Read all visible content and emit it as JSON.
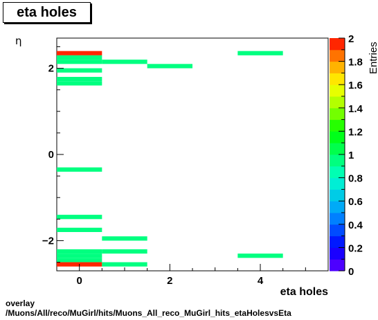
{
  "header": {
    "title": "eta holes"
  },
  "footer": {
    "line1": "overlay",
    "line2": "/Muons/All/reco/MuGirl/hits/Muons_All_reco_MuGirl_hits_etaHolesvsEta"
  },
  "chart_data": {
    "type": "heatmap",
    "title": "eta holes",
    "xlabel": "eta holes",
    "ylabel": "η",
    "zlabel": "Entries",
    "xlim": [
      -0.5,
      5.5
    ],
    "ylim": [
      -2.7,
      2.7
    ],
    "zlim": [
      0,
      2
    ],
    "x_bin_width": 1,
    "y_bin_width": 0.1,
    "xticks": [
      0,
      2,
      4
    ],
    "yticks": [
      -2,
      0,
      2
    ],
    "zticks": [
      "0",
      "0.2",
      "0.4",
      "0.6",
      "0.8",
      "1",
      "1.2",
      "1.4",
      "1.6",
      "1.8",
      "2"
    ],
    "cells": [
      {
        "x": 0,
        "y": 2.35,
        "v": 2
      },
      {
        "x": 0,
        "y": 2.25,
        "v": 1
      },
      {
        "x": 0,
        "y": 2.15,
        "v": 1
      },
      {
        "x": 0,
        "y": 1.95,
        "v": 1
      },
      {
        "x": 0,
        "y": 1.75,
        "v": 1
      },
      {
        "x": 0,
        "y": 1.65,
        "v": 1
      },
      {
        "x": 0,
        "y": -0.35,
        "v": 1
      },
      {
        "x": 0,
        "y": -1.45,
        "v": 1
      },
      {
        "x": 0,
        "y": -1.75,
        "v": 1
      },
      {
        "x": 0,
        "y": -2.25,
        "v": 1
      },
      {
        "x": 0,
        "y": -2.35,
        "v": 1
      },
      {
        "x": 0,
        "y": -2.45,
        "v": 1
      },
      {
        "x": 0,
        "y": -2.55,
        "v": 2
      },
      {
        "x": 1,
        "y": 2.15,
        "v": 1
      },
      {
        "x": 1,
        "y": -1.95,
        "v": 1
      },
      {
        "x": 1,
        "y": -2.25,
        "v": 1
      },
      {
        "x": 1,
        "y": -2.55,
        "v": 1
      },
      {
        "x": 2,
        "y": 2.05,
        "v": 1
      },
      {
        "x": 4,
        "y": 2.35,
        "v": 1
      },
      {
        "x": 4,
        "y": -2.35,
        "v": 1
      }
    ]
  }
}
